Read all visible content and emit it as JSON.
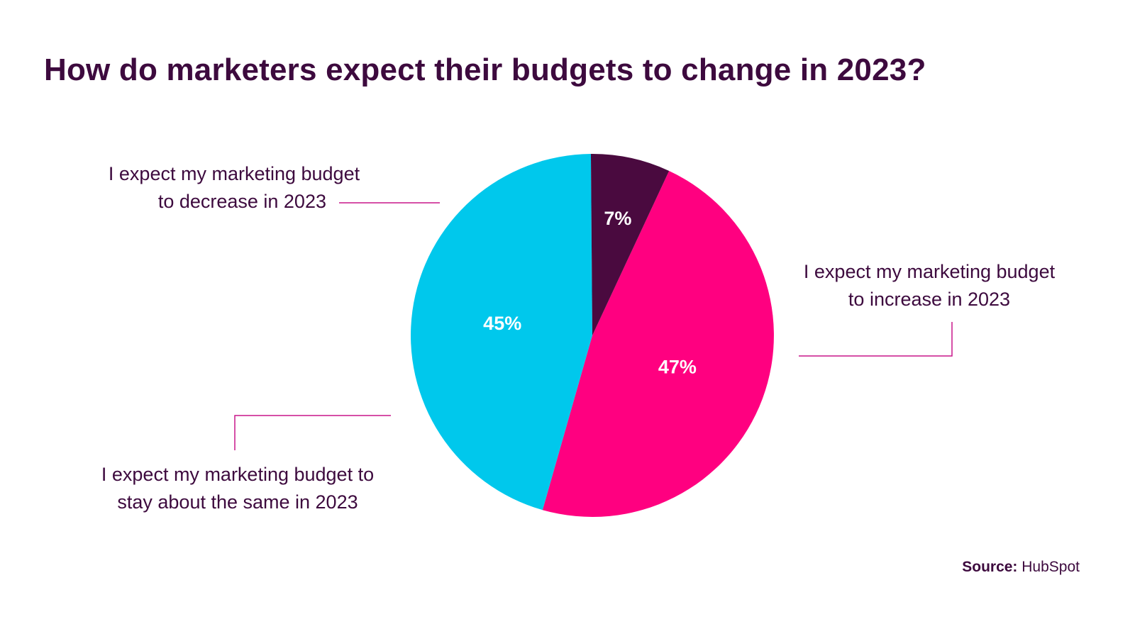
{
  "chart_data": {
    "type": "pie",
    "title": "How do marketers expect their budgets to change in 2023?",
    "slices": [
      {
        "label_line1": "I expect my marketing budget",
        "label_line2": "to increase in 2023",
        "value": 47,
        "display": "47%",
        "color": "#ff0080"
      },
      {
        "label_line1": "I expect my marketing budget to",
        "label_line2": "stay about the same in 2023",
        "value": 45,
        "display": "45%",
        "color": "#00c8ec"
      },
      {
        "label_line1": "I expect my marketing budget",
        "label_line2": "to decrease in 2023",
        "value": 7,
        "display": "7%",
        "color": "#4a0a3f"
      }
    ],
    "value_label_color": "#ffffff",
    "callout_line_color": "#c8178a"
  },
  "source": {
    "label": "Source:",
    "value": "HubSpot"
  }
}
